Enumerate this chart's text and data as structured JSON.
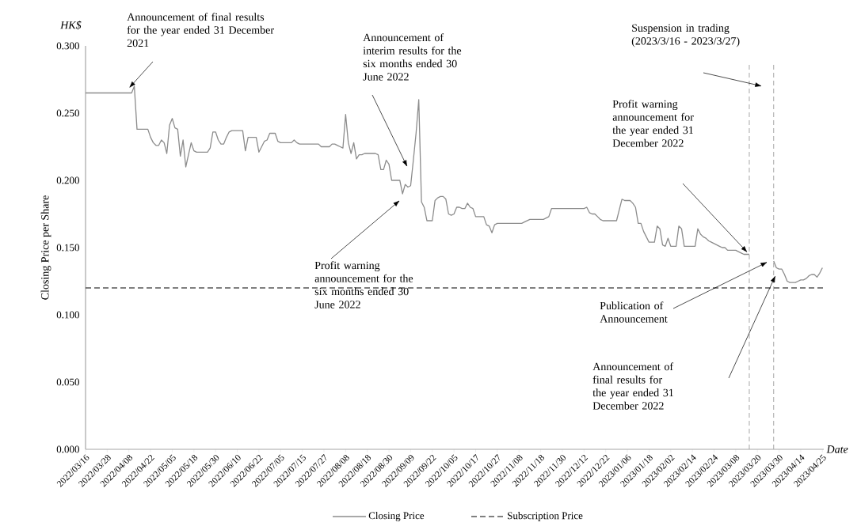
{
  "chart_data": {
    "type": "line",
    "xlabel": "Date",
    "ylabel": "Closing Price per Share",
    "categories": [
      "2022/03/16",
      null,
      null,
      null,
      null,
      null,
      null,
      null,
      "2022/03/28",
      null,
      null,
      null,
      null,
      null,
      null,
      null,
      "2022/04/08",
      null,
      null,
      null,
      null,
      null,
      null,
      null,
      "2022/04/22",
      null,
      null,
      null,
      null,
      null,
      null,
      null,
      "2022/05/05",
      null,
      null,
      null,
      null,
      null,
      null,
      null,
      "2022/05/18",
      null,
      null,
      null,
      null,
      null,
      null,
      null,
      "2022/05/30",
      null,
      null,
      null,
      null,
      null,
      null,
      null,
      "2022/06/10",
      null,
      null,
      null,
      null,
      null,
      null,
      null,
      "2022/06/22",
      null,
      null,
      null,
      null,
      null,
      null,
      null,
      "2022/07/05",
      null,
      null,
      null,
      null,
      null,
      null,
      null,
      "2022/07/15",
      null,
      null,
      null,
      null,
      null,
      null,
      null,
      "2022/07/27",
      null,
      null,
      null,
      null,
      null,
      null,
      null,
      "2022/08/08",
      null,
      null,
      null,
      null,
      null,
      null,
      null,
      "2022/08/18",
      null,
      null,
      null,
      null,
      null,
      null,
      null,
      "2022/08/30",
      null,
      null,
      null,
      null,
      null,
      null,
      null,
      "2022/09/09",
      null,
      null,
      null,
      null,
      null,
      null,
      null,
      "2022/09/22",
      null,
      null,
      null,
      null,
      null,
      null,
      null,
      "2022/10/05",
      null,
      null,
      null,
      null,
      null,
      null,
      null,
      "2022/10/17",
      null,
      null,
      null,
      null,
      null,
      null,
      null,
      "2022/10/27",
      null,
      null,
      null,
      null,
      null,
      null,
      null,
      "2022/11/08",
      null,
      null,
      null,
      null,
      null,
      null,
      null,
      "2022/11/18",
      null,
      null,
      null,
      null,
      null,
      null,
      null,
      "2022/11/30",
      null,
      null,
      null,
      null,
      null,
      null,
      null,
      "2022/12/12",
      null,
      null,
      null,
      null,
      null,
      null,
      null,
      "2022/12/22",
      null,
      null,
      null,
      null,
      null,
      null,
      null,
      "2023/01/06",
      null,
      null,
      null,
      null,
      null,
      null,
      null,
      "2023/01/18",
      null,
      null,
      null,
      null,
      null,
      null,
      null,
      "2023/02/02",
      null,
      null,
      null,
      null,
      null,
      null,
      null,
      "2023/02/14",
      null,
      null,
      null,
      null,
      null,
      null,
      null,
      "2023/02/24",
      null,
      null,
      null,
      null,
      null,
      null,
      null,
      "2023/03/08",
      null,
      null,
      null,
      null,
      null,
      null,
      null,
      "2023/03/20",
      null,
      null,
      null,
      null,
      null,
      null,
      null,
      "2023/03/30",
      null,
      null,
      null,
      null,
      null,
      null,
      null,
      "2023/04/14",
      null,
      null,
      null,
      null,
      null,
      null,
      null,
      "2023/04/25"
    ],
    "series": [
      {
        "name": "Closing Price",
        "color": "#8c8c8c",
        "values": [
          0.265,
          0.265,
          0.265,
          0.265,
          0.265,
          0.265,
          0.265,
          0.265,
          0.265,
          0.265,
          0.265,
          0.265,
          0.265,
          0.265,
          0.265,
          0.265,
          0.265,
          0.265,
          0.27,
          0.238,
          0.238,
          0.238,
          0.238,
          0.238,
          0.232,
          0.228,
          0.226,
          0.226,
          0.23,
          0.228,
          0.22,
          0.241,
          0.246,
          0.239,
          0.238,
          0.218,
          0.23,
          0.21,
          0.219,
          0.228,
          0.222,
          0.221,
          0.221,
          0.221,
          0.221,
          0.221,
          0.224,
          0.236,
          0.236,
          0.23,
          0.227,
          0.227,
          0.232,
          0.236,
          0.237,
          0.237,
          0.237,
          0.237,
          0.237,
          0.222,
          0.232,
          0.232,
          0.232,
          0.232,
          0.221,
          0.225,
          0.229,
          0.23,
          0.235,
          0.235,
          0.235,
          0.229,
          0.228,
          0.228,
          0.228,
          0.228,
          0.228,
          0.23,
          0.228,
          0.227,
          0.227,
          0.227,
          0.227,
          0.227,
          0.227,
          0.227,
          0.227,
          0.225,
          0.225,
          0.225,
          0.225,
          0.227,
          0.227,
          0.226,
          0.225,
          0.224,
          0.249,
          0.228,
          0.22,
          0.228,
          0.216,
          0.219,
          0.219,
          0.22,
          0.22,
          0.22,
          0.22,
          0.22,
          0.219,
          0.208,
          0.208,
          0.215,
          0.212,
          0.2,
          0.2,
          0.2,
          0.2,
          0.19,
          0.197,
          0.195,
          0.196,
          0.215,
          0.235,
          0.26,
          0.184,
          0.18,
          0.17,
          0.17,
          0.17,
          0.185,
          0.187,
          0.188,
          0.188,
          0.186,
          0.175,
          0.174,
          0.175,
          0.18,
          0.18,
          0.179,
          0.179,
          0.183,
          0.18,
          0.179,
          0.173,
          0.173,
          0.173,
          0.173,
          0.167,
          0.166,
          0.161,
          0.167,
          0.168,
          0.168,
          0.168,
          0.168,
          0.168,
          0.168,
          0.168,
          0.168,
          0.168,
          0.168,
          0.169,
          0.17,
          0.171,
          0.171,
          0.171,
          0.171,
          0.171,
          0.171,
          0.172,
          0.173,
          0.179,
          0.179,
          0.179,
          0.179,
          0.179,
          0.179,
          0.179,
          0.179,
          0.179,
          0.179,
          0.179,
          0.179,
          0.179,
          0.18,
          0.176,
          0.175,
          0.175,
          0.173,
          0.171,
          0.17,
          0.17,
          0.17,
          0.17,
          0.17,
          0.17,
          0.178,
          0.186,
          0.185,
          0.185,
          0.185,
          0.183,
          0.18,
          0.168,
          0.168,
          0.162,
          0.158,
          0.154,
          0.154,
          0.154,
          0.166,
          0.164,
          0.152,
          0.151,
          0.157,
          0.151,
          0.151,
          0.151,
          0.166,
          0.164,
          0.151,
          0.151,
          0.151,
          0.151,
          0.151,
          0.164,
          0.16,
          0.158,
          0.157,
          0.155,
          0.154,
          0.153,
          0.152,
          0.151,
          0.15,
          0.15,
          0.148,
          0.148,
          0.148,
          0.148,
          0.147,
          0.146,
          0.145,
          0.145,
          0.145,
          null,
          null,
          null,
          null,
          null,
          null,
          null,
          null,
          0.14,
          0.135,
          0.134,
          0.134,
          0.13,
          0.125,
          0.124,
          0.124,
          0.124,
          0.125,
          0.126,
          0.126,
          0.127,
          0.129,
          0.13,
          0.13,
          0.128,
          0.131,
          0.135
        ]
      }
    ],
    "ylim": [
      0,
      0.3
    ],
    "yticks": [
      {
        "value": 0,
        "label": "0.000"
      },
      {
        "value": 0.05,
        "label": "0.050"
      },
      {
        "value": 0.1,
        "label": "0.100"
      },
      {
        "value": 0.15,
        "label": "0.150"
      },
      {
        "value": 0.2,
        "label": "0.200"
      },
      {
        "value": 0.25,
        "label": "0.250"
      },
      {
        "value": 0.3,
        "label": "0.300"
      }
    ],
    "ref_lines": [
      {
        "axis": "y",
        "value": 0.12,
        "label": "Subscription Price",
        "color": "#000000",
        "line_style": "dashed"
      }
    ],
    "legend": "bottom",
    "annotations": [
      "Announcement of final results for the year ended 31 December 2021",
      "Announcement of interim results for the six months ended 30 June 2022",
      "Profit warning announcement for the six months ended 30 June 2022",
      "Profit warning announcement for the year ended 31 December 2022",
      "Publication of Announcement",
      "Announcement of final results for the year ended 31 December 2022",
      "Suspension in trading (2023/3/16 - 2023/3/27)",
      "HK$"
    ]
  }
}
